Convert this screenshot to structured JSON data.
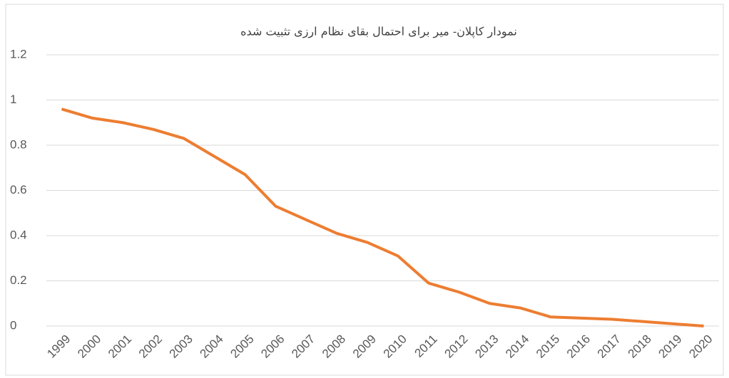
{
  "chart_data": {
    "type": "line",
    "title": "نمودار کاپلان- میر برای احتمال بقای نظام ارزی تثبیت شده",
    "categories": [
      "1999",
      "2000",
      "2001",
      "2002",
      "2003",
      "2004",
      "2005",
      "2006",
      "2007",
      "2008",
      "2009",
      "2010",
      "2011",
      "2012",
      "2013",
      "2014",
      "2015",
      "2016",
      "2017",
      "2018",
      "2019",
      "2020"
    ],
    "series": [
      {
        "color": "#ed7d31",
        "values": [
          0.96,
          0.92,
          0.9,
          0.87,
          0.83,
          0.75,
          0.67,
          0.53,
          0.47,
          0.41,
          0.37,
          0.31,
          0.19,
          0.15,
          0.1,
          0.08,
          0.04,
          0.035,
          0.03,
          0.02,
          0.01,
          0
        ]
      }
    ],
    "ylim": [
      0,
      1.2
    ],
    "yticks": [
      0,
      0.2,
      0.4,
      0.6,
      0.8,
      1,
      1.2
    ],
    "grid": true
  }
}
